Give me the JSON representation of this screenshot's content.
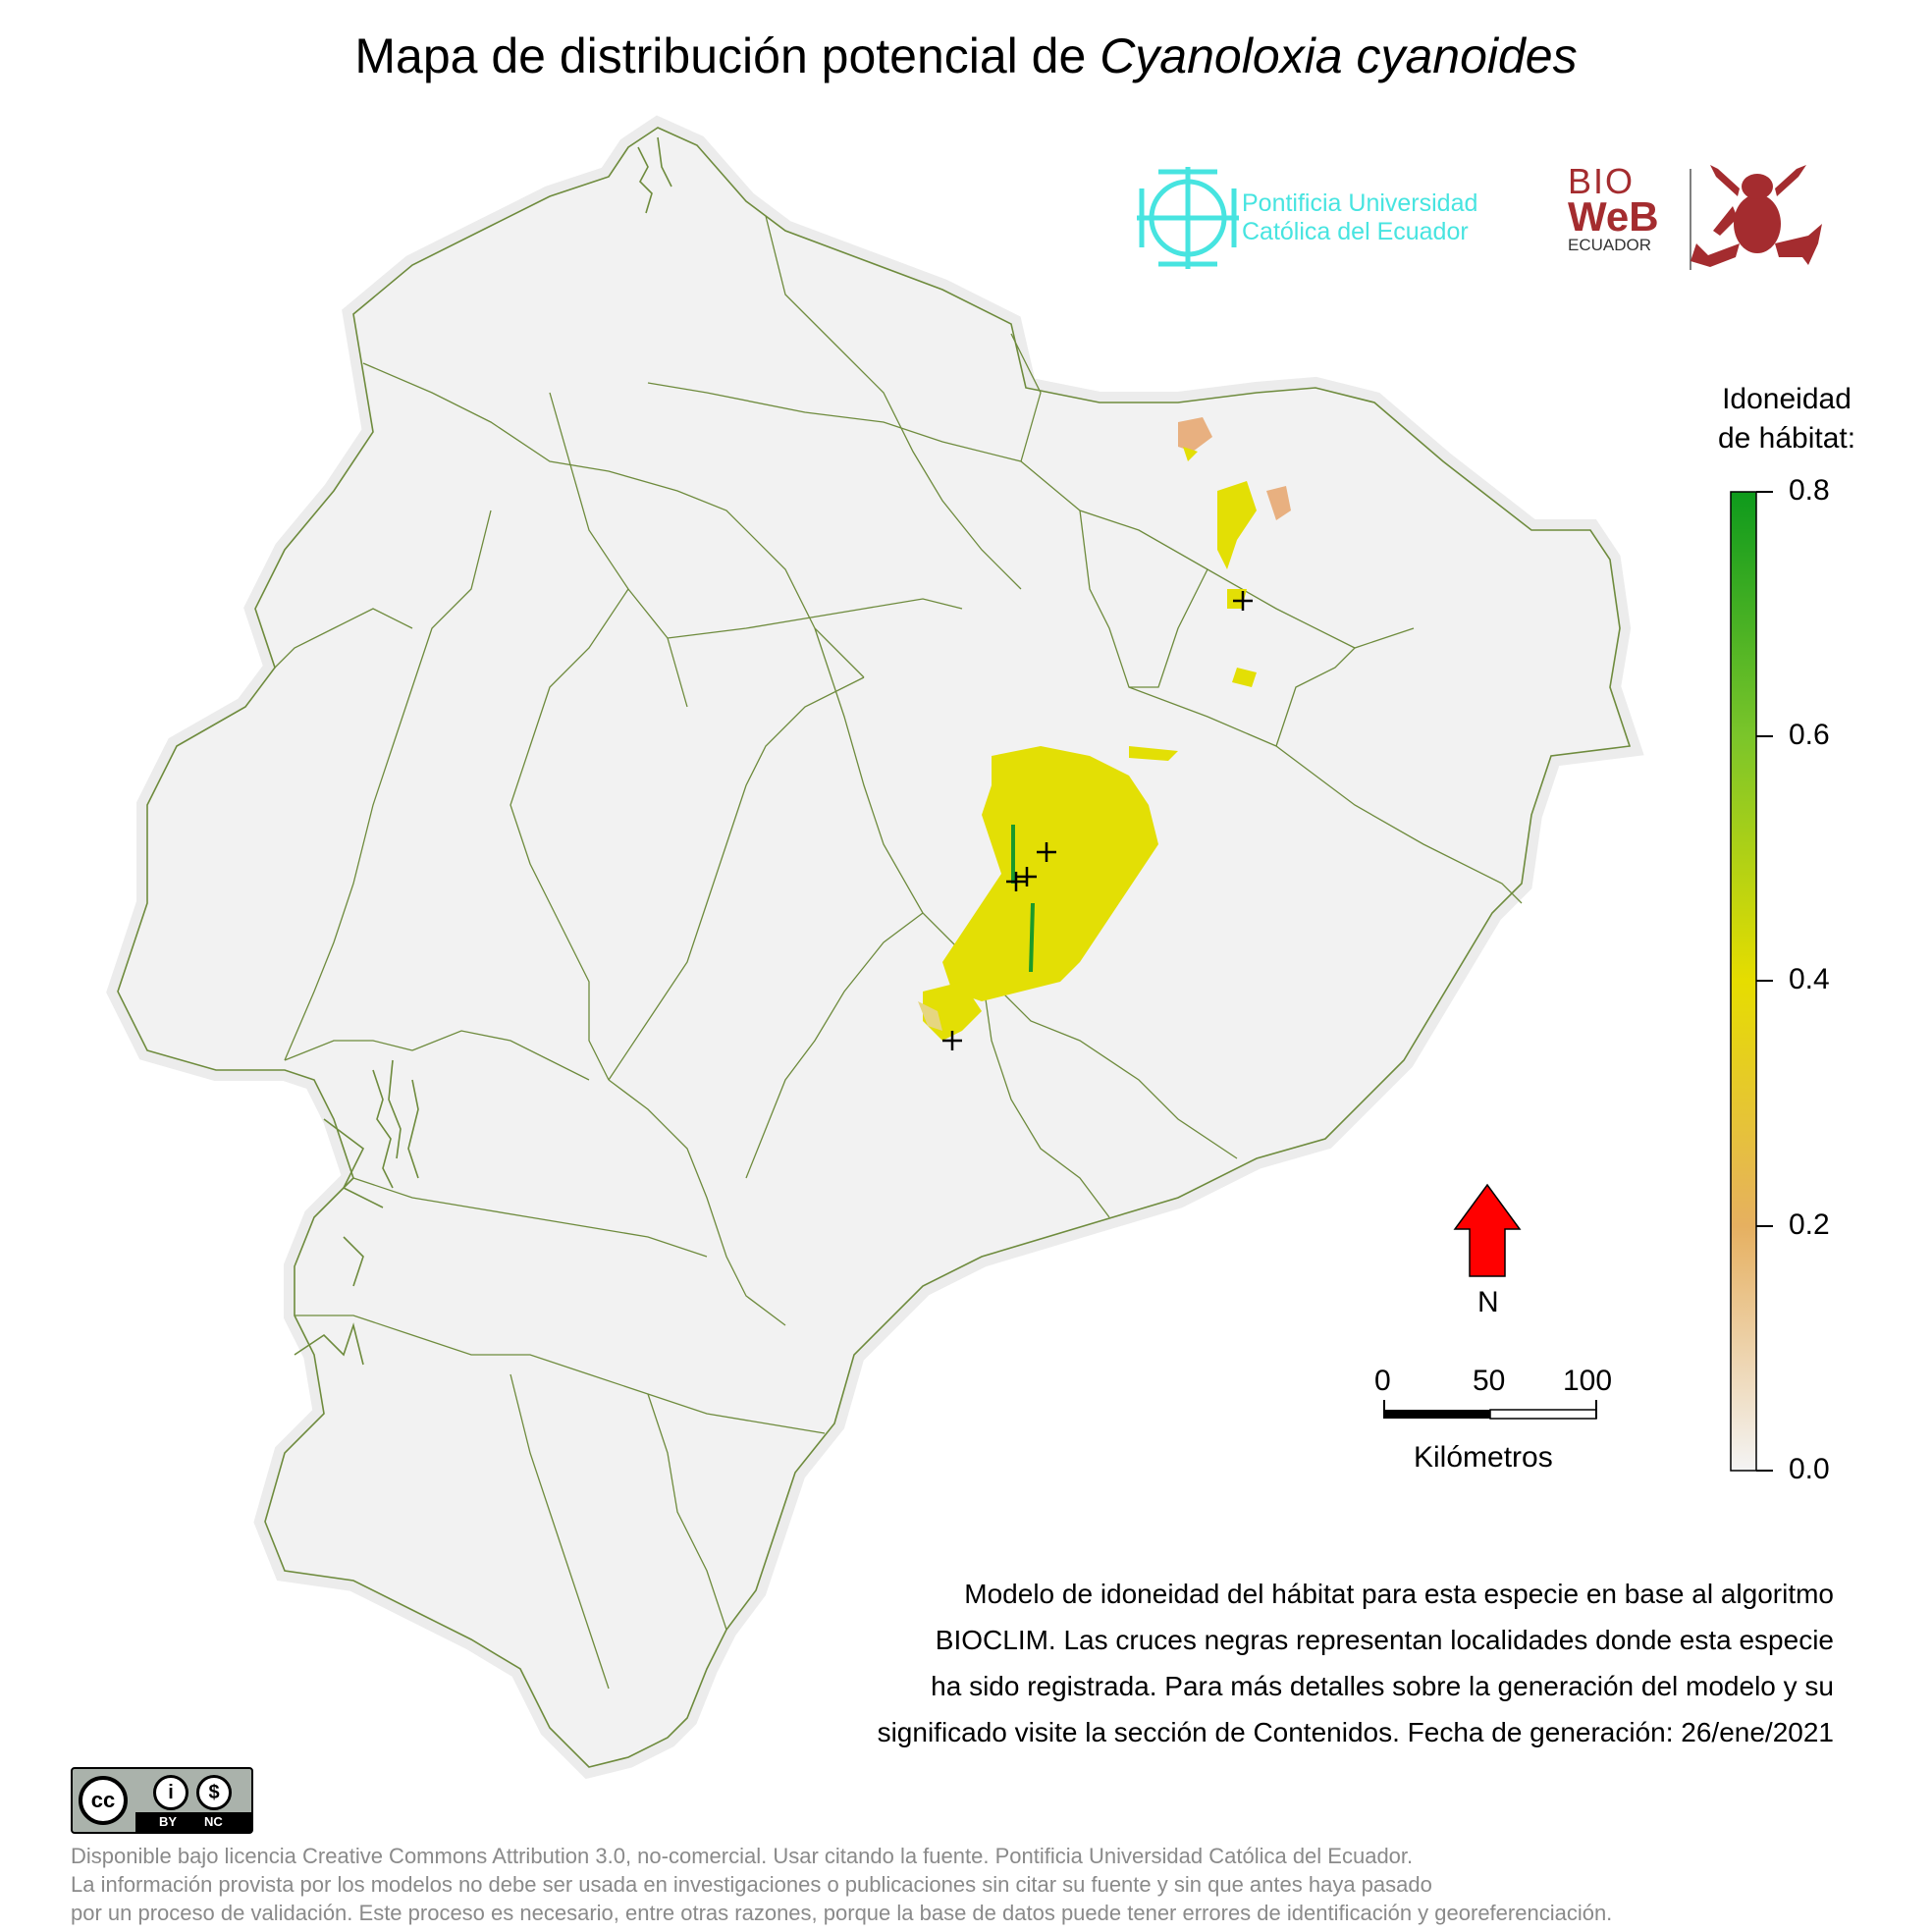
{
  "title": {
    "prefix": "Mapa de distribución potencial de ",
    "species": "Cyanoloxia cyanoides"
  },
  "logos": {
    "puce_line1": "Pontificia Universidad",
    "puce_line2": "Católica del Ecuador",
    "bioweb_top": "BIO",
    "bioweb_mid": "WeB",
    "bioweb_bottom": "ECUADOR"
  },
  "legend": {
    "title_line1": "Idoneidad",
    "title_line2": "de hábitat:",
    "ticks": [
      "0.8",
      "0.6",
      "0.4",
      "0.2",
      "0.0"
    ],
    "colors": [
      "#0e9a1c",
      "#7bc52a",
      "#e6dd00",
      "#e6b060",
      "#f4f4f4"
    ]
  },
  "north_arrow": {
    "label": "N",
    "color": "#ff0000"
  },
  "scale_bar": {
    "labels": [
      "0",
      "50",
      "100"
    ],
    "unit": "Kilómetros"
  },
  "description": {
    "line1": "Modelo de idoneidad del hábitat para esta especie en base al algoritmo",
    "line2": "BIOCLIM. Las cruces negras representan localidades donde esta especie",
    "line3": "ha sido registrada. Para más detalles sobre la generación del modelo y su",
    "line4": "significado visite la sección de Contenidos. Fecha de generación: 26/ene/2021"
  },
  "license_badge": {
    "by": "BY",
    "nc": "NC"
  },
  "footer": {
    "line1": "Disponible bajo licencia Creative Commons Attribution 3.0, no-comercial. Usar citando la fuente. Pontificia Universidad Católica del Ecuador.",
    "line2": "La información provista por los modelos no debe ser usada en investigaciones o publicaciones sin citar su fuente y sin que antes haya pasado",
    "line3": "por un proceso de validación. Este proceso es necesario, entre otras razones, porque la base de datos puede tener errores de identificación y georeferenciación."
  },
  "map_colors": {
    "land": "#f2f2f2",
    "border": "#6e8b3d",
    "suitability_mid": "#e3df05",
    "suitability_low": "#e8b080",
    "suitability_high": "#1b9a2a"
  }
}
